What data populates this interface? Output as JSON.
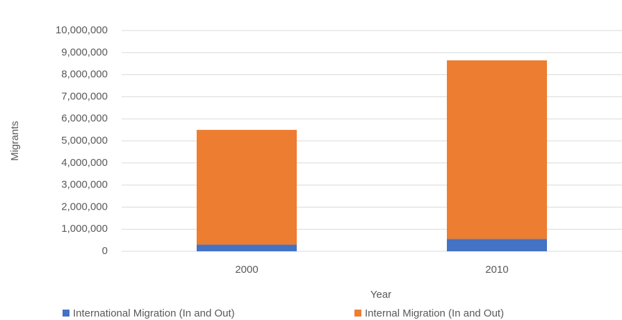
{
  "chart_data": {
    "type": "bar",
    "stacked": true,
    "x_label": "Year",
    "y_label": "Migrants",
    "categories": [
      "2000",
      "2010"
    ],
    "series": [
      {
        "name": "International Migration (In and Out)",
        "color": "#4472c4",
        "values": [
          300000,
          560000
        ]
      },
      {
        "name": "Internal Migration (In and Out)",
        "color": "#ed7d31",
        "values": [
          5200000,
          8090000
        ]
      }
    ],
    "ylim": [
      0,
      10000000
    ],
    "yticks": [
      0,
      {
        "value": 1000000,
        "label": "1,000,000"
      },
      {
        "value": 2000000,
        "label": "2,000,000"
      },
      {
        "value": 3000000,
        "label": "3,000,000"
      },
      {
        "value": 4000000,
        "label": "4,000,000"
      },
      {
        "value": 5000000,
        "label": "5,000,000"
      },
      {
        "value": 6000000,
        "label": "6,000,000"
      },
      {
        "value": 7000000,
        "label": "7,000,000"
      },
      {
        "value": 8000000,
        "label": "8,000,000"
      },
      {
        "value": 9000000,
        "label": "9,000,000"
      },
      {
        "value": 10000000,
        "label": "10,000,000"
      }
    ],
    "grid": true,
    "legend": "bottom"
  }
}
